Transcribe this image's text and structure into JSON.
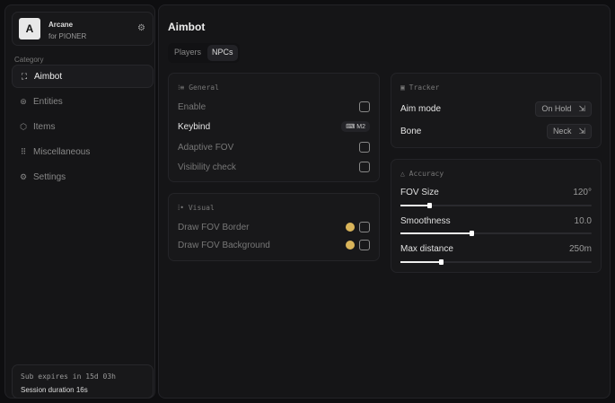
{
  "sidebar": {
    "brand": {
      "logo": "A",
      "name": "Arcane",
      "subtitle": "for PIONER",
      "settings_icon": "gear-icon"
    },
    "category_label": "Category",
    "items": [
      {
        "label": "Aimbot",
        "icon": "crosshair-icon",
        "active": true
      },
      {
        "label": "Entities",
        "icon": "users-icon"
      },
      {
        "label": "Items",
        "icon": "box-icon"
      },
      {
        "label": "Miscellaneous",
        "icon": "grid-icon"
      },
      {
        "label": "Settings",
        "icon": "gear-icon"
      }
    ],
    "footer": {
      "subscription": "Sub expires in 15d 03h",
      "session": "Session duration 16s"
    }
  },
  "main": {
    "title": "Aimbot",
    "tabs": [
      {
        "label": "Players"
      },
      {
        "label": "NPCs",
        "active": true
      }
    ],
    "general": {
      "title": "General",
      "enable": "Enable",
      "keybind": "Keybind",
      "keybind_value": "M2",
      "adaptive_fov": "Adaptive FOV",
      "visibility_check": "Visibility check"
    },
    "visual": {
      "title": "Visual",
      "draw_border": "Draw FOV Border",
      "draw_background": "Draw FOV Background",
      "color": "#d9b45a"
    },
    "tracker": {
      "title": "Tracker",
      "aim_mode": "Aim mode",
      "aim_mode_value": "On Hold",
      "bone": "Bone",
      "bone_value": "Neck"
    },
    "accuracy": {
      "title": "Accuracy",
      "sliders": [
        {
          "label": "FOV Size",
          "value": "120°",
          "fraction": 0.15
        },
        {
          "label": "Smoothness",
          "value": "10.0",
          "fraction": 0.37
        },
        {
          "label": "Max distance",
          "value": "250m",
          "fraction": 0.21
        }
      ]
    }
  }
}
